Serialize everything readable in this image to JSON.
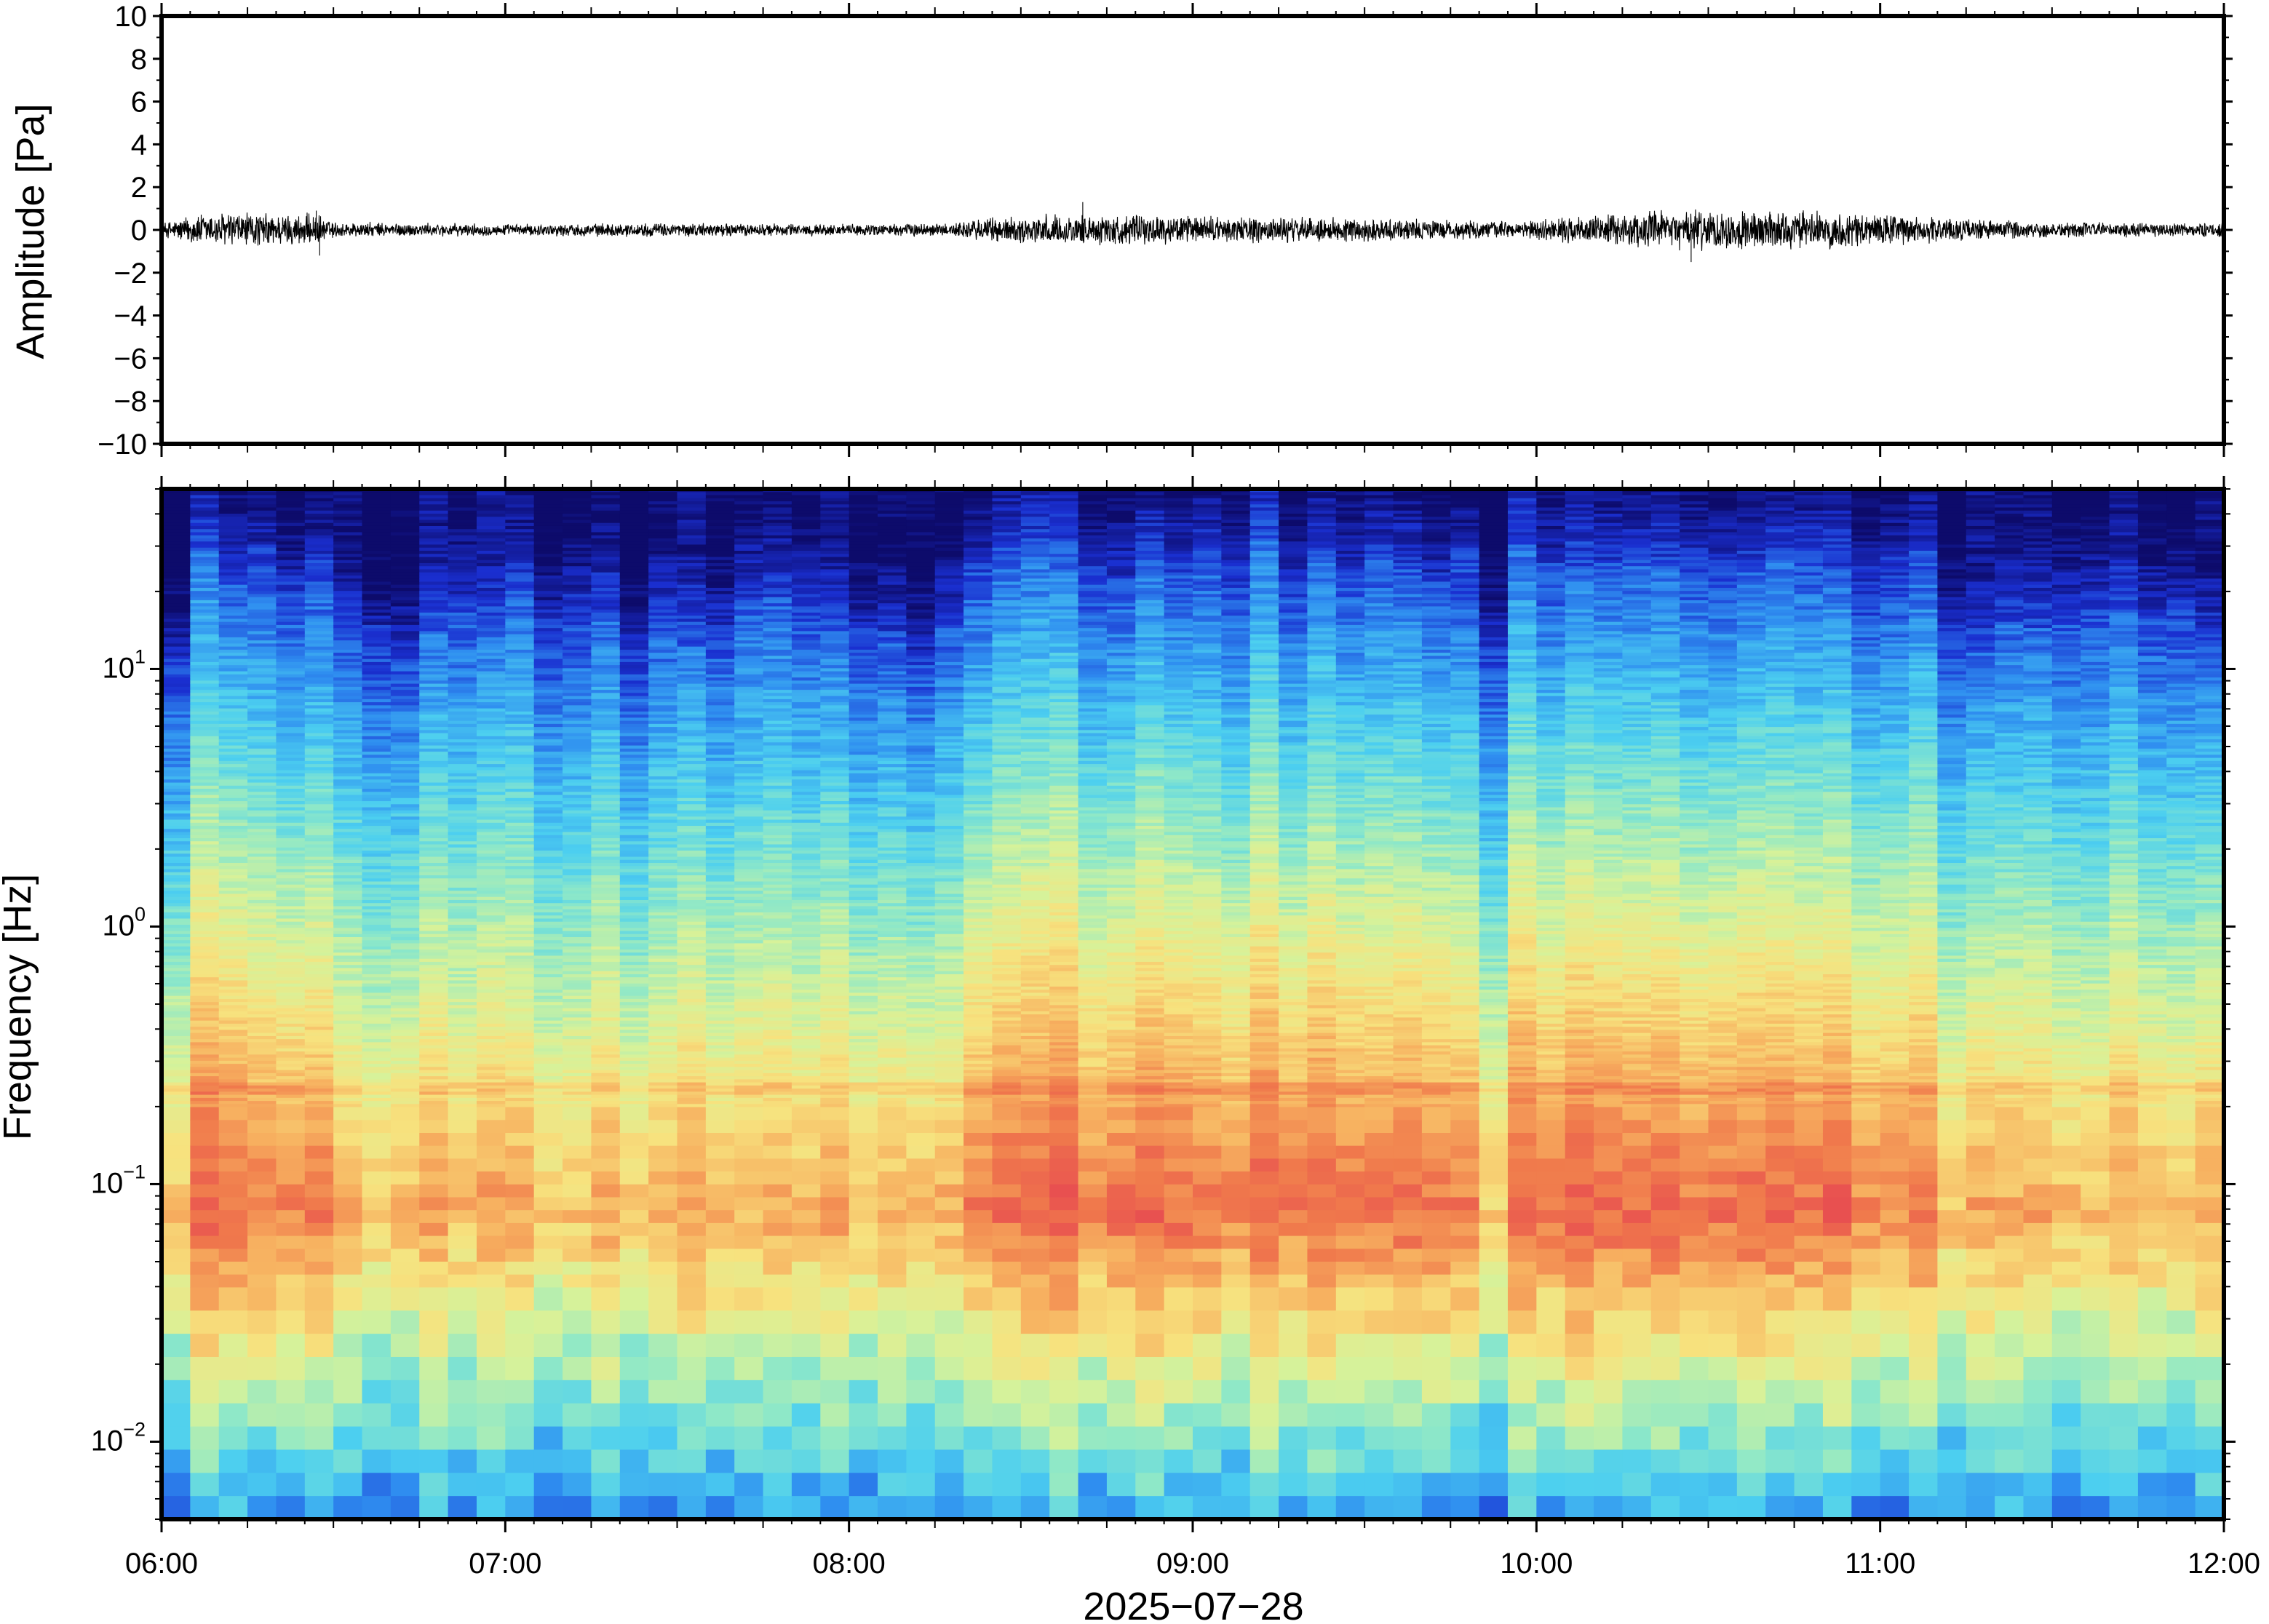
{
  "chart_data": [
    {
      "type": "line",
      "panel": "waveform",
      "ylabel": "Amplitude [Pa]",
      "ylim": [
        -10,
        10
      ],
      "yticks": [
        10,
        8,
        6,
        4,
        2,
        0,
        -2,
        -4,
        -6,
        -8,
        -10
      ],
      "ytick_labels": [
        "10",
        "8",
        "6",
        "4",
        "2",
        "0",
        "−2",
        "−4",
        "−6",
        "−8",
        "−10"
      ],
      "xlim": [
        "06:00",
        "12:00"
      ],
      "line_color": "#000000",
      "envelope": {
        "time_hours": [
          6.0,
          6.1,
          6.2,
          6.35,
          6.45,
          6.5,
          6.7,
          7.0,
          7.5,
          8.0,
          8.3,
          8.4,
          8.6,
          8.8,
          9.0,
          9.3,
          9.6,
          9.8,
          9.95,
          10.1,
          10.3,
          10.5,
          10.8,
          11.0,
          11.2,
          11.5,
          11.8,
          12.0
        ],
        "amplitude_pa": [
          0.3,
          0.7,
          0.8,
          0.7,
          0.7,
          0.35,
          0.3,
          0.25,
          0.3,
          0.25,
          0.3,
          0.55,
          0.65,
          0.65,
          0.6,
          0.55,
          0.5,
          0.4,
          0.35,
          0.55,
          0.75,
          0.9,
          0.8,
          0.75,
          0.5,
          0.35,
          0.3,
          0.3
        ]
      },
      "spikes": [
        {
          "time_hours": 6.45,
          "amplitude_pa": 0.9
        },
        {
          "time_hours": 6.46,
          "amplitude_pa": -1.2
        },
        {
          "time_hours": 8.68,
          "amplitude_pa": 1.3
        },
        {
          "time_hours": 10.45,
          "amplitude_pa": -1.5
        }
      ]
    },
    {
      "type": "heatmap",
      "panel": "spectrogram",
      "ylabel": "Frequency [Hz]",
      "y_scale": "log",
      "ylim": [
        0.005,
        50
      ],
      "yticks": [
        {
          "base": "10",
          "exp": "1",
          "value": 10
        },
        {
          "base": "10",
          "exp": "0",
          "value": 1
        },
        {
          "base": "10",
          "exp": "−1",
          "value": 0.1
        },
        {
          "base": "10",
          "exp": "−2",
          "value": 0.01
        }
      ],
      "colormap": [
        "#0d0b6b",
        "#1a2fd0",
        "#2f8ef0",
        "#4ccff0",
        "#8ee8c8",
        "#d6f29a",
        "#f7e27e",
        "#f7b160",
        "#f07a4c",
        "#e85050"
      ],
      "quiet_periods_hours": [
        [
          6.5,
          8.35
        ],
        [
          9.85,
          9.95
        ],
        [
          11.2,
          12.0
        ]
      ],
      "active_periods_hours": [
        [
          6.05,
          6.5
        ],
        [
          8.35,
          9.85
        ],
        [
          9.95,
          11.2
        ]
      ],
      "peak_frequency_band_hz": [
        0.04,
        0.15
      ]
    }
  ],
  "x_axis": {
    "tick_labels": [
      "06:00",
      "07:00",
      "08:00",
      "09:00",
      "10:00",
      "11:00",
      "12:00"
    ],
    "xlabel": "2025−07−28"
  }
}
